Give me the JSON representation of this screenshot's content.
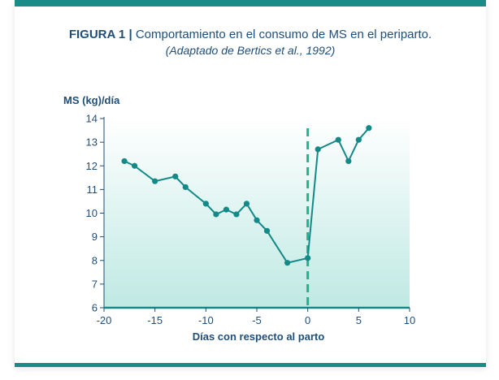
{
  "figure": {
    "label": "FIGURA 1 |",
    "title": "Comportamiento en el consumo de MS en el periparto.",
    "subtitle": "(Adaptado de Bertics et al., 1992)"
  },
  "colors": {
    "accent": "#1a8b86",
    "line": "#138a87",
    "text": "#1f4e79",
    "fill_top": "#ffffff",
    "fill_bottom": "#bfe9e3"
  },
  "chart_data": {
    "type": "line",
    "ylabel": "MS (kg)/día",
    "xlabel": "Días con respecto al parto",
    "xlim": [
      -20,
      10
    ],
    "ylim": [
      6,
      14
    ],
    "xticks": [
      -20,
      -15,
      -10,
      -5,
      0,
      5,
      10
    ],
    "yticks": [
      6,
      7,
      8,
      9,
      10,
      11,
      12,
      13,
      14
    ],
    "reference_line_x": 0,
    "grid": false,
    "series": [
      {
        "x": [
          -18,
          -17,
          -15,
          -13,
          -12,
          -10,
          -9,
          -8,
          -7,
          -6,
          -5,
          -4,
          -2,
          0,
          1,
          3,
          4,
          5,
          6
        ],
        "y": [
          12.2,
          12.0,
          11.35,
          11.55,
          11.1,
          10.4,
          9.95,
          10.15,
          9.95,
          10.4,
          9.7,
          9.25,
          7.9,
          8.1,
          12.7,
          13.1,
          12.2,
          13.1,
          13.6
        ]
      }
    ]
  }
}
